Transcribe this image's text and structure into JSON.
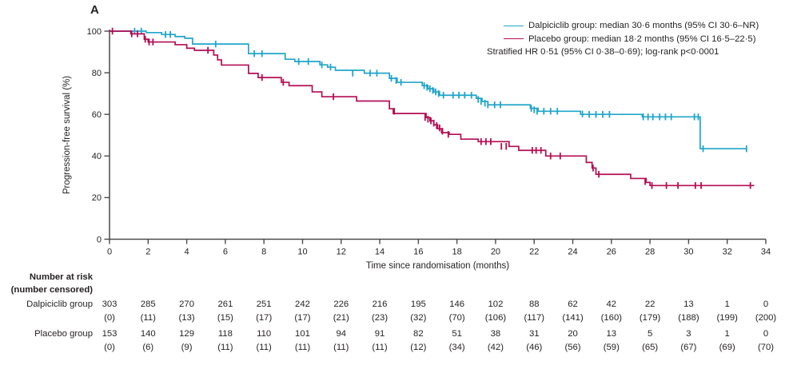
{
  "panel_label": "A",
  "legend": {
    "entries": [
      {
        "label": "Dalpiciclib group: median 30·6 months (95% CI 30·6–NR)",
        "color": "#20a5c9"
      },
      {
        "label": "Placebo group: median 18·2 months (95% CI 16·5–22·5)",
        "color": "#b30d53"
      }
    ],
    "note": "Stratified HR 0·51 (95% CI 0·38–0·69); log-rank p<0·0001"
  },
  "chart_data": {
    "type": "line",
    "subtype": "kaplan-meier-step",
    "title": "",
    "xlabel": "Time since randomisation (months)",
    "ylabel": "Progression-free survival (%)",
    "xlim": [
      0,
      34
    ],
    "ylim": [
      0,
      100
    ],
    "xticks": [
      0,
      2,
      4,
      6,
      8,
      10,
      12,
      14,
      16,
      18,
      20,
      22,
      24,
      26,
      28,
      30,
      32,
      34
    ],
    "yticks": [
      0,
      20,
      40,
      60,
      80,
      100
    ],
    "grid": false,
    "legend_position": "top-right",
    "axis_color": "#4a4a4c",
    "series": [
      {
        "name": "Dalpiciclib group",
        "color": "#20a5c9",
        "median_months": "30·6",
        "end_time": 33.0,
        "steps": [
          [
            0,
            100
          ],
          [
            1.9,
            99.3
          ],
          [
            2.7,
            98.4
          ],
          [
            3.4,
            97.4
          ],
          [
            3.9,
            96.6
          ],
          [
            4.3,
            93.8
          ],
          [
            7.2,
            89.2
          ],
          [
            9.1,
            86.5
          ],
          [
            9.6,
            85.4
          ],
          [
            10.9,
            83.8
          ],
          [
            11.3,
            82.7
          ],
          [
            11.7,
            81.2
          ],
          [
            13.2,
            79.8
          ],
          [
            14.5,
            77.3
          ],
          [
            14.9,
            75.4
          ],
          [
            16.2,
            73.8
          ],
          [
            16.5,
            72.3
          ],
          [
            16.8,
            70.8
          ],
          [
            17.1,
            69.2
          ],
          [
            19.0,
            67.7
          ],
          [
            19.3,
            66.2
          ],
          [
            19.6,
            64.6
          ],
          [
            21.8,
            62.9
          ],
          [
            22.2,
            61.5
          ],
          [
            24.4,
            60.0
          ],
          [
            27.6,
            58.8
          ],
          [
            30.6,
            43.5
          ]
        ],
        "censor_marks": [
          [
            1.3,
            100
          ],
          [
            1.65,
            100
          ],
          [
            2.9,
            98.4
          ],
          [
            3.15,
            98.4
          ],
          [
            5.5,
            93.8
          ],
          [
            7.5,
            89.2
          ],
          [
            7.9,
            89.2
          ],
          [
            9.8,
            85.4
          ],
          [
            10.3,
            85.4
          ],
          [
            11.0,
            83.8
          ],
          [
            11.45,
            82.7
          ],
          [
            12.6,
            79.8
          ],
          [
            13.5,
            79.8
          ],
          [
            13.85,
            79.8
          ],
          [
            14.6,
            77.3
          ],
          [
            14.85,
            76.3
          ],
          [
            15.1,
            75.4
          ],
          [
            16.3,
            73.8
          ],
          [
            16.45,
            73.0
          ],
          [
            16.6,
            72.3
          ],
          [
            16.75,
            71.5
          ],
          [
            16.9,
            70.8
          ],
          [
            17.05,
            70.0
          ],
          [
            17.3,
            69.2
          ],
          [
            17.8,
            69.2
          ],
          [
            18.1,
            69.2
          ],
          [
            18.4,
            69.2
          ],
          [
            18.75,
            69.2
          ],
          [
            19.1,
            67.2
          ],
          [
            19.25,
            66.2
          ],
          [
            19.45,
            65.4
          ],
          [
            19.6,
            64.6
          ],
          [
            19.95,
            64.6
          ],
          [
            20.25,
            64.6
          ],
          [
            21.85,
            62.9
          ],
          [
            22.0,
            62.2
          ],
          [
            22.15,
            61.5
          ],
          [
            22.5,
            61.5
          ],
          [
            22.85,
            61.5
          ],
          [
            23.2,
            61.5
          ],
          [
            24.5,
            60.2
          ],
          [
            24.85,
            60.0
          ],
          [
            25.2,
            60.0
          ],
          [
            25.55,
            60.0
          ],
          [
            25.9,
            60.0
          ],
          [
            27.65,
            58.8
          ],
          [
            27.9,
            58.8
          ],
          [
            28.15,
            58.8
          ],
          [
            28.5,
            58.8
          ],
          [
            28.8,
            58.8
          ],
          [
            29.1,
            58.8
          ],
          [
            30.3,
            58.8
          ],
          [
            30.5,
            58.8
          ],
          [
            30.75,
            43.5
          ],
          [
            33.0,
            43.5
          ]
        ]
      },
      {
        "name": "Placebo group",
        "color": "#b30d53",
        "median_months": "18·2",
        "end_time": 33.4,
        "steps": [
          [
            0,
            100
          ],
          [
            1.1,
            98.7
          ],
          [
            1.8,
            96.1
          ],
          [
            2.0,
            94.8
          ],
          [
            3.4,
            93.5
          ],
          [
            4.0,
            91.8
          ],
          [
            4.4,
            90.8
          ],
          [
            5.4,
            88.5
          ],
          [
            5.6,
            86.2
          ],
          [
            5.8,
            83.7
          ],
          [
            7.2,
            79.7
          ],
          [
            7.7,
            77.7
          ],
          [
            8.9,
            75.4
          ],
          [
            9.3,
            73.8
          ],
          [
            10.5,
            70.8
          ],
          [
            11.0,
            68.5
          ],
          [
            12.8,
            66.4
          ],
          [
            14.5,
            62.7
          ],
          [
            14.7,
            60.4
          ],
          [
            16.4,
            58.5
          ],
          [
            16.6,
            56.9
          ],
          [
            16.8,
            55.0
          ],
          [
            17.0,
            53.1
          ],
          [
            17.2,
            51.2
          ],
          [
            17.6,
            50.4
          ],
          [
            18.2,
            48.1
          ],
          [
            19.1,
            46.9
          ],
          [
            20.7,
            44.6
          ],
          [
            21.2,
            42.7
          ],
          [
            22.6,
            40.0
          ],
          [
            24.7,
            36.9
          ],
          [
            25.0,
            34.2
          ],
          [
            25.2,
            31.2
          ],
          [
            27.0,
            29.2
          ],
          [
            27.8,
            27.3
          ],
          [
            28.0,
            25.8
          ]
        ],
        "censor_marks": [
          [
            0.15,
            100
          ],
          [
            1.15,
            98.7
          ],
          [
            1.45,
            98.7
          ],
          [
            1.85,
            96.1
          ],
          [
            2.05,
            94.8
          ],
          [
            2.25,
            94.8
          ],
          [
            5.1,
            90.8
          ],
          [
            7.9,
            77.7
          ],
          [
            9.0,
            75.4
          ],
          [
            11.6,
            68.5
          ],
          [
            14.75,
            61.5
          ],
          [
            16.35,
            58.5
          ],
          [
            16.5,
            57.7
          ],
          [
            16.65,
            56.9
          ],
          [
            16.8,
            55.8
          ],
          [
            16.95,
            54.6
          ],
          [
            17.1,
            53.5
          ],
          [
            17.25,
            51.9
          ],
          [
            17.55,
            50.4
          ],
          [
            19.25,
            46.9
          ],
          [
            19.5,
            46.9
          ],
          [
            19.75,
            46.9
          ],
          [
            20.3,
            44.6
          ],
          [
            20.55,
            44.6
          ],
          [
            21.9,
            42.7
          ],
          [
            22.1,
            42.7
          ],
          [
            22.35,
            42.7
          ],
          [
            22.85,
            40.0
          ],
          [
            23.35,
            40.0
          ],
          [
            25.05,
            34.2
          ],
          [
            25.35,
            31.2
          ],
          [
            27.75,
            27.7
          ],
          [
            28.1,
            25.8
          ],
          [
            28.85,
            25.8
          ],
          [
            29.45,
            25.8
          ],
          [
            30.35,
            25.8
          ],
          [
            30.65,
            25.8
          ],
          [
            33.2,
            25.8
          ]
        ]
      }
    ]
  },
  "risk_table": {
    "title": "Number at risk",
    "subtitle": "(number censored)",
    "months": [
      0,
      2,
      4,
      6,
      8,
      10,
      12,
      14,
      16,
      18,
      20,
      22,
      24,
      26,
      28,
      30,
      32,
      34
    ],
    "rows": [
      {
        "label": "Dalpiciclib group",
        "at_risk": [
          303,
          285,
          270,
          261,
          251,
          242,
          226,
          216,
          195,
          146,
          102,
          88,
          62,
          42,
          22,
          13,
          1,
          0
        ],
        "censored": [
          0,
          11,
          13,
          15,
          17,
          17,
          21,
          23,
          32,
          70,
          106,
          117,
          141,
          160,
          179,
          188,
          199,
          200
        ]
      },
      {
        "label": "Placebo group",
        "at_risk": [
          153,
          140,
          129,
          118,
          110,
          101,
          94,
          91,
          82,
          51,
          38,
          31,
          20,
          13,
          5,
          3,
          1,
          0
        ],
        "censored": [
          0,
          6,
          9,
          11,
          11,
          11,
          11,
          11,
          12,
          34,
          42,
          46,
          56,
          59,
          65,
          67,
          69,
          70
        ]
      }
    ]
  }
}
